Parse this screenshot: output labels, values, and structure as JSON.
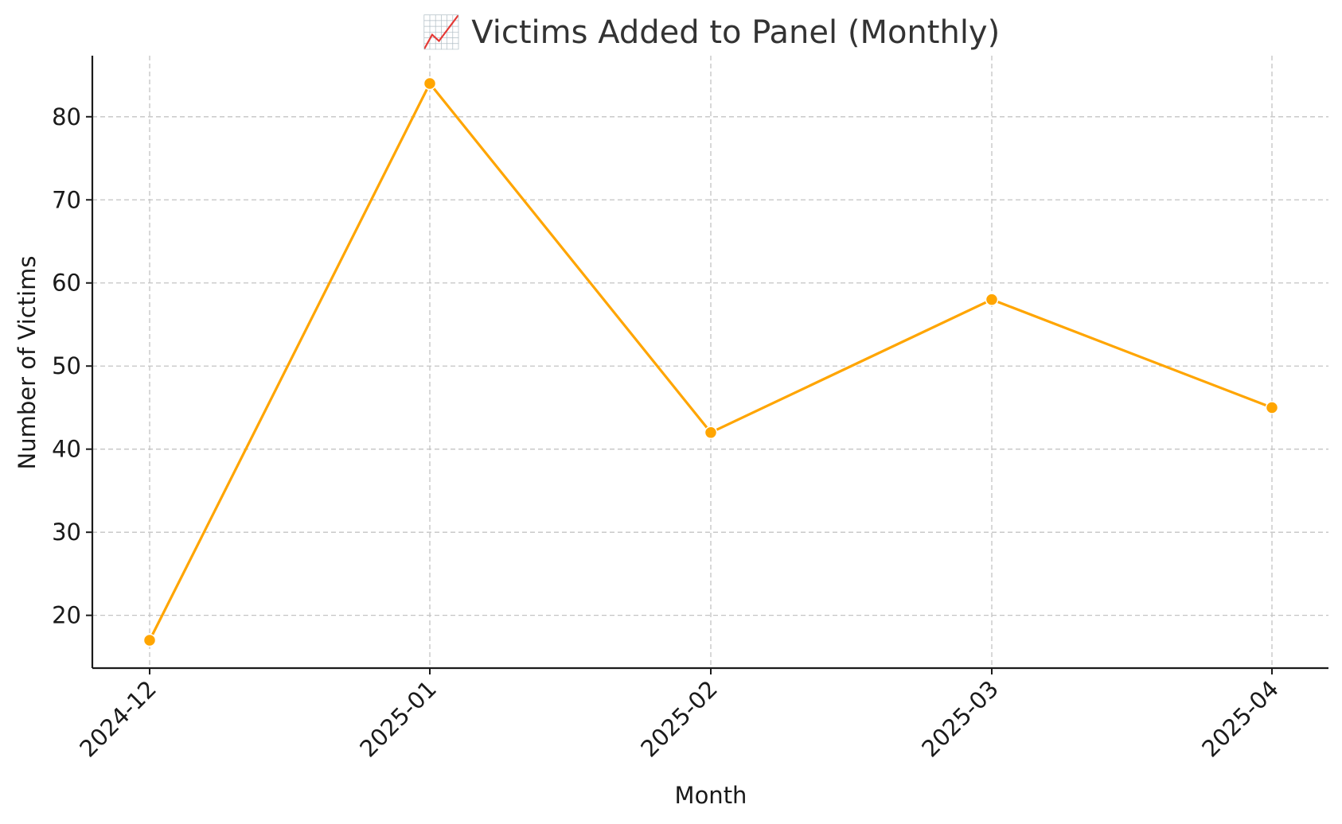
{
  "chart_data": {
    "type": "line",
    "title": "📈 Victims Added to Panel (Monthly)",
    "title_icon": "chart-increasing-icon",
    "xlabel": "Month",
    "ylabel": "Number of Victims",
    "categories": [
      "2024-12",
      "2025-01",
      "2025-02",
      "2025-03",
      "2025-04"
    ],
    "series": [
      {
        "values": [
          17,
          84,
          42,
          58,
          45
        ],
        "color": "#FFA500",
        "marker": "circle"
      }
    ],
    "yticks": [
      20,
      30,
      40,
      50,
      60,
      70,
      80
    ],
    "ylim": [
      13.65,
      87.35
    ],
    "grid": true,
    "legend": "none"
  }
}
